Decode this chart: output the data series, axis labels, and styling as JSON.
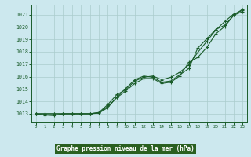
{
  "title": "Graphe pression niveau de la mer (hPa)",
  "bg_color": "#cce8ee",
  "plot_bg_color": "#cce8ee",
  "grid_color": "#aacccc",
  "line_color": "#1a5c2a",
  "title_bg": "#2a6e2a",
  "title_fg": "#ffffff",
  "xlim": [
    -0.5,
    23.5
  ],
  "ylim": [
    1012.3,
    1021.8
  ],
  "yticks": [
    1013,
    1014,
    1015,
    1016,
    1017,
    1018,
    1019,
    1020,
    1021
  ],
  "xticks": [
    0,
    1,
    2,
    3,
    4,
    5,
    6,
    7,
    8,
    9,
    10,
    11,
    12,
    13,
    14,
    15,
    16,
    17,
    18,
    19,
    20,
    21,
    22,
    23
  ],
  "series1_x": [
    0,
    1,
    2,
    3,
    4,
    5,
    6,
    7,
    8,
    9,
    10,
    11,
    12,
    13,
    14,
    15,
    16,
    17,
    18,
    19,
    20,
    21,
    22,
    23
  ],
  "series1_y": [
    1013.0,
    1012.9,
    1012.85,
    1013.0,
    1013.0,
    1013.0,
    1013.0,
    1013.05,
    1013.5,
    1014.35,
    1015.05,
    1015.75,
    1016.05,
    1015.95,
    1015.55,
    1015.65,
    1016.15,
    1016.65,
    1018.3,
    1019.05,
    1019.8,
    1020.15,
    1020.95,
    1021.25
  ],
  "series2_x": [
    0,
    1,
    2,
    3,
    4,
    5,
    6,
    7,
    8,
    9,
    10,
    11,
    12,
    13,
    14,
    15,
    16,
    17,
    18,
    19,
    20,
    21,
    22,
    23
  ],
  "series2_y": [
    1013.0,
    1013.0,
    1013.0,
    1013.0,
    1013.0,
    1013.0,
    1013.0,
    1013.1,
    1013.75,
    1014.55,
    1014.95,
    1015.65,
    1015.95,
    1016.05,
    1015.75,
    1015.95,
    1016.35,
    1016.95,
    1017.95,
    1018.85,
    1019.75,
    1020.45,
    1021.05,
    1021.35
  ],
  "series3_x": [
    0,
    1,
    2,
    3,
    4,
    5,
    6,
    7,
    8,
    9,
    10,
    11,
    12,
    13,
    14,
    15,
    16,
    17,
    18,
    19,
    20,
    21,
    22,
    23
  ],
  "series3_y": [
    1013.0,
    1013.0,
    1013.0,
    1013.0,
    1013.0,
    1013.0,
    1013.0,
    1013.1,
    1013.6,
    1014.3,
    1014.85,
    1015.45,
    1015.85,
    1015.85,
    1015.45,
    1015.55,
    1016.05,
    1017.15,
    1017.55,
    1018.35,
    1019.45,
    1020.05,
    1020.95,
    1021.45
  ]
}
